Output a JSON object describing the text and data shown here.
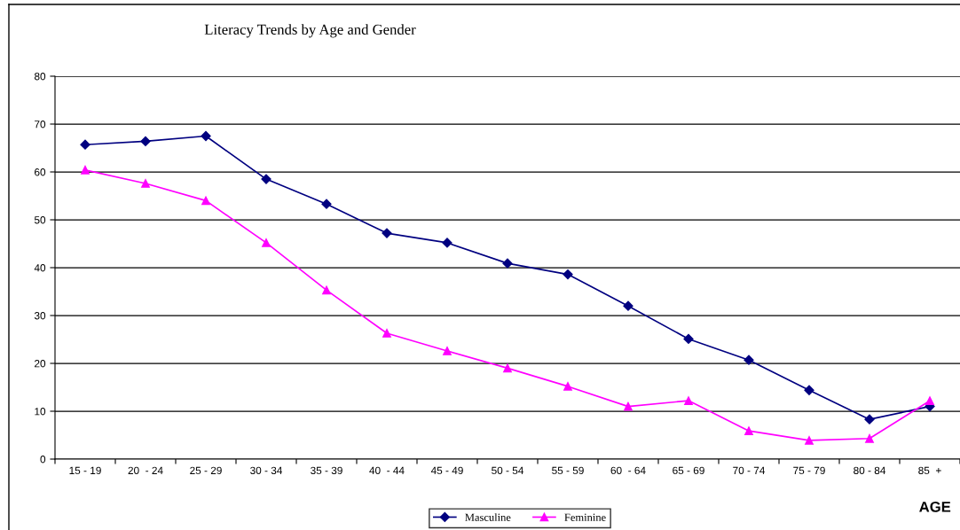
{
  "chart_data": {
    "type": "line",
    "title": "Literacy Trends by Age and Gender",
    "xlabel": "AGE",
    "categories": [
      "15 - 19",
      "20  - 24",
      "25 - 29",
      "30 - 34",
      "35 - 39",
      "40  - 44",
      "45 - 49",
      "50 - 54",
      "55 - 59",
      "60  - 64",
      "65 - 69",
      "70 - 74",
      "75 - 79",
      "80 - 84",
      "85  +"
    ],
    "series": [
      {
        "name": "Masculine",
        "color": "#000080",
        "marker": "diamond",
        "values": [
          65.7,
          66.4,
          67.5,
          58.5,
          53.3,
          47.2,
          45.2,
          40.9,
          38.6,
          32.0,
          25.1,
          20.7,
          14.4,
          8.3,
          11.0
        ]
      },
      {
        "name": "Feminine",
        "color": "#ff00ff",
        "marker": "triangle",
        "values": [
          60.4,
          57.6,
          54.0,
          45.2,
          35.3,
          26.3,
          22.6,
          19.0,
          15.2,
          11.0,
          12.2,
          5.9,
          3.9,
          4.3,
          12.2
        ]
      }
    ],
    "ylim": [
      0,
      80
    ],
    "yticks": [
      0,
      10,
      20,
      30,
      40,
      50,
      60,
      70,
      80
    ],
    "grid": "y",
    "legend": "bottom",
    "line_style": "solid"
  }
}
